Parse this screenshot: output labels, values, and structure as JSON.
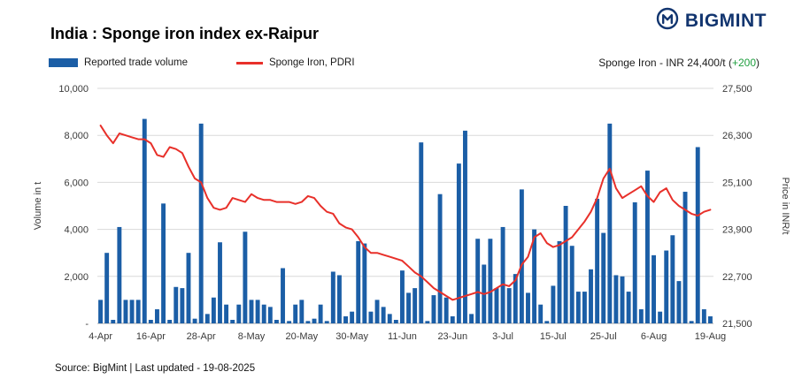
{
  "header": {
    "title": "India : Sponge iron index ex-Raipur",
    "brand": "BIGMINT"
  },
  "legend": {
    "volume_label": "Reported trade volume",
    "price_label": "Sponge Iron, PDRI"
  },
  "price_note": {
    "prefix": "Sponge Iron - INR 24,400/t (",
    "delta": "+200",
    "suffix": ")"
  },
  "footer": {
    "source": "Source: BigMint | Last updated - 19-08-2025"
  },
  "colors": {
    "bar": "#1b5ea6",
    "line": "#e8302a",
    "brand": "#12356f",
    "delta_green": "#1e9e3e",
    "grid": "#d9d9d9",
    "axis": "#a6a6a6",
    "tick_text": "#3a3a3a"
  },
  "chart_data": {
    "type": "bar",
    "title": "India : Sponge iron index ex-Raipur",
    "x_tick_labels": [
      "4-Apr",
      "16-Apr",
      "28-Apr",
      "8-May",
      "20-May",
      "30-May",
      "11-Jun",
      "23-Jun",
      "3-Jul",
      "15-Jul",
      "25-Jul",
      "6-Aug",
      "19-Aug"
    ],
    "x_tick_indices": [
      0,
      8,
      16,
      24,
      32,
      40,
      48,
      56,
      64,
      72,
      80,
      88,
      97
    ],
    "left_axis": {
      "title": "Volume in t",
      "min": 0,
      "max": 10000,
      "tick_labels": [
        "10,000",
        "8,000",
        "6,000",
        "4,000",
        "2,000",
        "-"
      ]
    },
    "right_axis": {
      "title": "Price in INR/t",
      "min": 21500,
      "max": 27500,
      "tick_labels": [
        "27,500",
        "26,300",
        "25,100",
        "23,900",
        "22,700",
        "21,500"
      ]
    },
    "grid": true,
    "legend_position": "top",
    "series": [
      {
        "name": "Reported trade volume",
        "type": "bar",
        "axis": "left",
        "values": [
          1000,
          3000,
          150,
          4100,
          1000,
          1000,
          1000,
          8700,
          150,
          600,
          5100,
          150,
          1550,
          1500,
          3000,
          200,
          8500,
          400,
          1100,
          3450,
          800,
          150,
          800,
          3900,
          1000,
          1000,
          800,
          700,
          150,
          2350,
          100,
          800,
          1000,
          100,
          200,
          800,
          100,
          2200,
          2050,
          300,
          500,
          3500,
          3400,
          500,
          1000,
          700,
          400,
          150,
          2250,
          1300,
          1500,
          7700,
          100,
          1200,
          5500,
          1100,
          300,
          6800,
          8200,
          400,
          3600,
          2500,
          3600,
          1500,
          4100,
          1500,
          2100,
          5700,
          1300,
          4000,
          800,
          100,
          1600,
          3500,
          5000,
          3300,
          1350,
          1350,
          2300,
          5300,
          3850,
          8500,
          2050,
          2000,
          1350,
          5150,
          600,
          6500,
          2900,
          500,
          3100,
          3750,
          1800,
          5600,
          100,
          7500,
          600,
          300
        ]
      },
      {
        "name": "Sponge Iron, PDRI",
        "type": "line",
        "axis": "right",
        "values": [
          26550,
          26300,
          26100,
          26350,
          26300,
          26250,
          26200,
          26200,
          26100,
          25800,
          25750,
          26000,
          25950,
          25850,
          25500,
          25200,
          25100,
          24700,
          24450,
          24400,
          24450,
          24700,
          24650,
          24600,
          24800,
          24700,
          24650,
          24650,
          24600,
          24600,
          24600,
          24550,
          24600,
          24750,
          24700,
          24500,
          24350,
          24300,
          24050,
          23950,
          23900,
          23700,
          23450,
          23300,
          23300,
          23250,
          23200,
          23150,
          23100,
          22950,
          22800,
          22700,
          22550,
          22400,
          22300,
          22200,
          22100,
          22150,
          22200,
          22250,
          22300,
          22250,
          22300,
          22400,
          22500,
          22450,
          22600,
          23000,
          23200,
          23700,
          23800,
          23550,
          23450,
          23500,
          23600,
          23700,
          23900,
          24100,
          24350,
          24700,
          25200,
          25450,
          24950,
          24700,
          24800,
          24900,
          25000,
          24750,
          24600,
          24850,
          24950,
          24650,
          24500,
          24400,
          24300,
          24250,
          24350,
          24400
        ]
      }
    ]
  }
}
